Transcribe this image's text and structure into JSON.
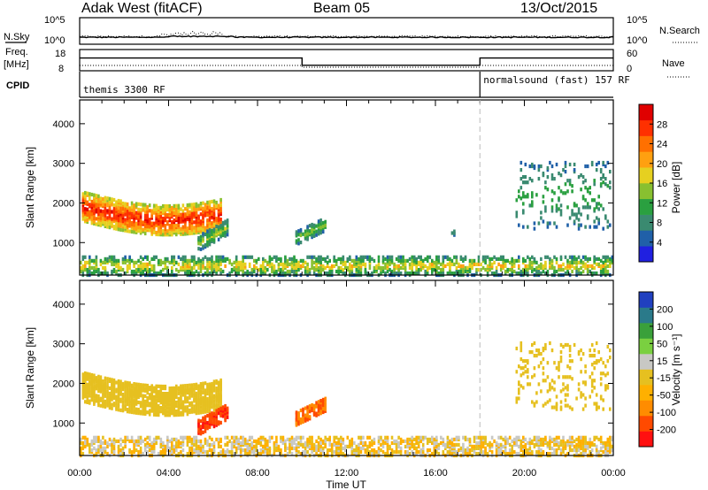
{
  "header": {
    "station": "Adak West (fitACF)",
    "beam": "Beam 05",
    "date": "13/Oct/2015"
  },
  "colors": {
    "axis": "#000000",
    "dashed_marker": "#bbbbbb",
    "power_scale": [
      "#2020e0",
      "#2060a8",
      "#3a8a70",
      "#2aa040",
      "#88c030",
      "#e6d020",
      "#ffa010",
      "#ff7000",
      "#ff3000",
      "#e00000"
    ],
    "velocity_scale": [
      "#ff1010",
      "#ff4a00",
      "#ff8c00",
      "#ffb000",
      "#e6c020",
      "#c8c8c4",
      "#7ad040",
      "#3aa03a",
      "#2a7a8a",
      "#2040c0"
    ]
  },
  "panels": {
    "sky": {
      "left_label": "N.Sky",
      "left_ticks": [
        "10^5",
        "10^0"
      ],
      "right_label": "N.Search",
      "right_ticks": [
        "10^5",
        "10^0"
      ]
    },
    "freq": {
      "left_label_1": "Freq.",
      "left_label_2": "[MHz]",
      "left_ticks": [
        "18",
        "8"
      ],
      "right_label": "Nave",
      "right_ticks": [
        "60",
        "0"
      ]
    },
    "cpid": {
      "label": "CPID",
      "program_1": "themis 3300 RF",
      "program_2": "normalsound (fast) 157 RF",
      "switch_time": "18:00"
    }
  },
  "axes": {
    "x_label": "Time UT",
    "x_ticks": [
      "00:00",
      "04:00",
      "08:00",
      "12:00",
      "16:00",
      "20:00",
      "00:00"
    ],
    "y_label": "Slant Range [km]",
    "y_ticks": [
      "1000",
      "2000",
      "3000",
      "4000"
    ]
  },
  "colorbars": {
    "power": {
      "label": "Power [dB]",
      "ticks": [
        "4",
        "8",
        "12",
        "16",
        "20",
        "24",
        "28"
      ]
    },
    "velocity": {
      "label": "Velocity [m s⁻¹]",
      "ticks": [
        "-200",
        "-100",
        "-50",
        "-15",
        "15",
        "50",
        "100",
        "200"
      ]
    }
  },
  "chart_data": [
    {
      "type": "line",
      "title": "N.Sky / N.Search",
      "x_range_hours": [
        0,
        24
      ],
      "y_scale": "log",
      "series": [
        {
          "name": "N.Sky",
          "style": "solid",
          "approx_level": "10^1"
        },
        {
          "name": "N.Search",
          "style": "dotted",
          "approx_level": "10^1"
        }
      ]
    },
    {
      "type": "line",
      "title": "Freq. [MHz] / Nave",
      "x_range_hours": [
        0,
        24
      ],
      "series": [
        {
          "name": "Freq.",
          "style": "solid",
          "x": [
            0,
            10,
            10,
            18,
            18,
            24
          ],
          "y": [
            14,
            14,
            10.6,
            10.6,
            14,
            14
          ]
        },
        {
          "name": "Nave",
          "style": "dotted",
          "x": [
            0,
            10,
            10,
            18,
            18,
            24
          ],
          "y": [
            15,
            15,
            10,
            10,
            15,
            15
          ]
        }
      ]
    },
    {
      "type": "heatmap",
      "title": "Power",
      "xlabel": "Time UT",
      "ylabel": "Slant Range [km]",
      "x_range_hours": [
        0,
        24
      ],
      "ylim_km": [
        180,
        4600
      ],
      "colorbar": {
        "label": "Power [dB]",
        "range": [
          0,
          30
        ]
      },
      "regions": [
        {
          "feature": "main echo band",
          "t_start": 0.1,
          "t_end": 6.3,
          "range_km_approx": [
            1300,
            2400
          ],
          "power_db": [
            12,
            30
          ]
        },
        {
          "feature": "rising echo",
          "t_start": 5.3,
          "t_end": 6.6,
          "range_km_approx": [
            800,
            1600
          ],
          "power_db": [
            4,
            16
          ]
        },
        {
          "feature": "patch",
          "t_start": 9.7,
          "t_end": 11.0,
          "range_km_approx": [
            950,
            1650
          ],
          "power_db": [
            4,
            16
          ]
        },
        {
          "feature": "patch",
          "t_start": 16.7,
          "t_end": 17.0,
          "range_km_approx": [
            1150,
            1400
          ],
          "power_db": [
            4,
            12
          ]
        },
        {
          "feature": "far echoes",
          "t_start": 19.6,
          "t_end": 23.9,
          "range_km_approx": [
            1350,
            3050
          ],
          "power_db": [
            4,
            12
          ]
        },
        {
          "feature": "ground scatter",
          "t_start": 0.0,
          "t_end": 24.0,
          "range_km_approx": [
            180,
            650
          ],
          "power_db": [
            4,
            20
          ]
        }
      ]
    },
    {
      "type": "heatmap",
      "title": "Velocity",
      "xlabel": "Time UT",
      "ylabel": "Slant Range [km]",
      "x_range_hours": [
        0,
        24
      ],
      "ylim_km": [
        180,
        4600
      ],
      "colorbar": {
        "label": "Velocity [m s⁻¹]",
        "range": [
          -250,
          250
        ]
      },
      "regions": [
        {
          "feature": "main echo band",
          "t_start": 0.1,
          "t_end": 6.3,
          "range_km_approx": [
            1400,
            2400
          ],
          "velocity": [
            -15,
            15
          ]
        },
        {
          "feature": "rising echo",
          "t_start": 5.3,
          "t_end": 6.6,
          "range_km_approx": [
            700,
            1500
          ],
          "velocity": [
            -250,
            -100
          ]
        },
        {
          "feature": "patch",
          "t_start": 9.7,
          "t_end": 11.0,
          "range_km_approx": [
            950,
            1650
          ],
          "velocity": [
            -150,
            -50
          ]
        },
        {
          "feature": "far echoes",
          "t_start": 19.6,
          "t_end": 23.9,
          "range_km_approx": [
            1350,
            3050
          ],
          "velocity": [
            -15,
            15
          ]
        },
        {
          "feature": "ground scatter",
          "t_start": 0.0,
          "t_end": 24.0,
          "range_km_approx": [
            180,
            650
          ],
          "velocity": [
            -50,
            50
          ]
        }
      ]
    }
  ]
}
